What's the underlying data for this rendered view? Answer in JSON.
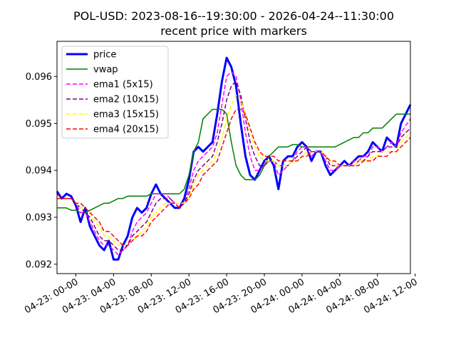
{
  "chart_data": {
    "type": "line",
    "title": "POL-USD: 2023-08-16--19:30:00 - 2026-04-24--11:30:00",
    "subtitle": "recent price with markers",
    "xlabel": "",
    "ylabel": "",
    "x_ticks": [
      "04-23: 00-00",
      "04-23: 04-00",
      "04-23: 08-00",
      "04-23: 12-00",
      "04-23: 16-00",
      "04-23: 20-00",
      "04-24: 00-00",
      "04-24: 04-00",
      "04-24: 08-00",
      "04-24: 12-00"
    ],
    "x_range_hours": [
      -2.0,
      35.5
    ],
    "y_ticks": [
      0.092,
      0.093,
      0.094,
      0.095,
      0.096
    ],
    "y_tick_labels": [
      "0.092",
      "0.093",
      "0.094",
      "0.095",
      "0.096"
    ],
    "ylim": [
      0.0918,
      0.09675
    ],
    "grid": false,
    "legend_position": "top-left",
    "x_hours": [
      -2.0,
      -1.5,
      -1.0,
      -0.5,
      0.0,
      0.5,
      1.0,
      1.5,
      2.0,
      2.5,
      3.0,
      3.5,
      4.0,
      4.5,
      5.0,
      5.5,
      6.0,
      6.5,
      7.0,
      7.5,
      8.0,
      8.5,
      9.0,
      9.5,
      10.0,
      10.5,
      11.0,
      11.5,
      12.0,
      12.5,
      13.0,
      13.5,
      14.0,
      14.5,
      15.0,
      15.5,
      16.0,
      16.5,
      17.0,
      17.5,
      18.0,
      18.5,
      19.0,
      19.5,
      20.0,
      20.5,
      21.0,
      21.5,
      22.0,
      22.5,
      23.0,
      23.5,
      24.0,
      24.5,
      25.0,
      25.5,
      26.0,
      26.5,
      27.0,
      27.5,
      28.0,
      28.5,
      29.0,
      29.5,
      30.0,
      30.5,
      31.0,
      31.5,
      32.0,
      32.5,
      33.0,
      33.5,
      34.0,
      34.5,
      35.5
    ],
    "series": [
      {
        "name": "price",
        "color": "#0000ff",
        "style": "solid",
        "values": [
          0.09355,
          0.0934,
          0.0935,
          0.09345,
          0.09325,
          0.0929,
          0.0932,
          0.0928,
          0.0926,
          0.0924,
          0.0923,
          0.0925,
          0.0921,
          0.0921,
          0.0924,
          0.0926,
          0.093,
          0.0932,
          0.0931,
          0.0932,
          0.0935,
          0.0937,
          0.0935,
          0.0934,
          0.0933,
          0.0932,
          0.0932,
          0.0934,
          0.0938,
          0.0944,
          0.0945,
          0.0944,
          0.0945,
          0.0946,
          0.0952,
          0.0959,
          0.0964,
          0.0962,
          0.0958,
          0.095,
          0.0943,
          0.0939,
          0.0938,
          0.094,
          0.0942,
          0.0943,
          0.0941,
          0.0936,
          0.0942,
          0.0943,
          0.0943,
          0.0945,
          0.0946,
          0.0945,
          0.0942,
          0.0944,
          0.0944,
          0.0941,
          0.0939,
          0.094,
          0.0941,
          0.0942,
          0.0941,
          0.0942,
          0.0943,
          0.0943,
          0.0944,
          0.0946,
          0.0945,
          0.0944,
          0.0947,
          0.0946,
          0.0945,
          0.095,
          0.0954
        ]
      },
      {
        "name": "vwap",
        "color": "#008000",
        "style": "solid",
        "values": [
          0.0932,
          0.0932,
          0.0932,
          0.09315,
          0.09315,
          0.0931,
          0.0931,
          0.09315,
          0.0932,
          0.09325,
          0.0933,
          0.0933,
          0.09335,
          0.0934,
          0.0934,
          0.09345,
          0.09345,
          0.09345,
          0.09345,
          0.09345,
          0.0935,
          0.0935,
          0.0935,
          0.0935,
          0.0935,
          0.0935,
          0.0935,
          0.0936,
          0.0939,
          0.0944,
          0.0946,
          0.0951,
          0.0952,
          0.0953,
          0.0953,
          0.0953,
          0.0952,
          0.0946,
          0.0941,
          0.0939,
          0.0938,
          0.0938,
          0.0938,
          0.0939,
          0.0941,
          0.0943,
          0.0944,
          0.0945,
          0.0945,
          0.0945,
          0.09455,
          0.09455,
          0.0945,
          0.0945,
          0.0945,
          0.0945,
          0.0945,
          0.0945,
          0.0945,
          0.0945,
          0.09455,
          0.0946,
          0.09465,
          0.0947,
          0.0947,
          0.0948,
          0.0948,
          0.0949,
          0.0949,
          0.0949,
          0.095,
          0.0951,
          0.0952,
          0.0952,
          0.0952
        ]
      },
      {
        "name": "ema1 (5x15)",
        "color": "#ff00ff",
        "style": "dashed",
        "values": [
          0.0935,
          0.0934,
          0.0934,
          0.0934,
          0.0933,
          0.0931,
          0.0931,
          0.0929,
          0.0927,
          0.0925,
          0.0924,
          0.0924,
          0.0923,
          0.0922,
          0.0923,
          0.0924,
          0.0927,
          0.0929,
          0.093,
          0.0931,
          0.0933,
          0.0935,
          0.0935,
          0.0935,
          0.0934,
          0.0933,
          0.0932,
          0.0933,
          0.0936,
          0.094,
          0.0942,
          0.0943,
          0.0944,
          0.0945,
          0.0948,
          0.0954,
          0.096,
          0.0961,
          0.096,
          0.0955,
          0.0948,
          0.0943,
          0.094,
          0.094,
          0.0941,
          0.0942,
          0.0942,
          0.0939,
          0.094,
          0.0941,
          0.0942,
          0.0944,
          0.0945,
          0.0945,
          0.0943,
          0.0944,
          0.0944,
          0.0942,
          0.094,
          0.094,
          0.0941,
          0.0941,
          0.0941,
          0.0942,
          0.0942,
          0.0943,
          0.0943,
          0.0945,
          0.0945,
          0.0944,
          0.0945,
          0.0946,
          0.0945,
          0.0948,
          0.0951
        ]
      },
      {
        "name": "ema2 (10x15)",
        "color": "#800080",
        "style": "dashed",
        "values": [
          0.0935,
          0.0934,
          0.0934,
          0.0934,
          0.0933,
          0.0932,
          0.0931,
          0.093,
          0.0928,
          0.0926,
          0.0925,
          0.0925,
          0.0924,
          0.0923,
          0.0923,
          0.0924,
          0.0926,
          0.0927,
          0.0928,
          0.0929,
          0.0931,
          0.0933,
          0.0934,
          0.0934,
          0.0934,
          0.0933,
          0.0933,
          0.0933,
          0.0935,
          0.0938,
          0.094,
          0.0941,
          0.0942,
          0.0943,
          0.0946,
          0.095,
          0.0955,
          0.0958,
          0.0959,
          0.0956,
          0.0951,
          0.0946,
          0.0943,
          0.0941,
          0.0941,
          0.0942,
          0.0942,
          0.0941,
          0.0941,
          0.0941,
          0.0942,
          0.0943,
          0.0944,
          0.0945,
          0.0944,
          0.0944,
          0.0944,
          0.0943,
          0.0941,
          0.0941,
          0.0941,
          0.0941,
          0.0941,
          0.0941,
          0.0942,
          0.0942,
          0.0943,
          0.0944,
          0.0944,
          0.0944,
          0.0945,
          0.0945,
          0.0945,
          0.0947,
          0.0949
        ]
      },
      {
        "name": "ema3 (15x15)",
        "color": "#ffff00",
        "style": "dashed",
        "values": [
          0.0934,
          0.0934,
          0.0934,
          0.0934,
          0.0933,
          0.0932,
          0.0932,
          0.0931,
          0.0929,
          0.0928,
          0.0926,
          0.0926,
          0.0925,
          0.0924,
          0.0924,
          0.0924,
          0.0925,
          0.0926,
          0.0927,
          0.0928,
          0.093,
          0.0931,
          0.0932,
          0.0933,
          0.0933,
          0.0933,
          0.0933,
          0.0933,
          0.0934,
          0.0937,
          0.0939,
          0.094,
          0.0941,
          0.0942,
          0.0944,
          0.0947,
          0.0951,
          0.0954,
          0.0956,
          0.0955,
          0.0952,
          0.0948,
          0.0945,
          0.0943,
          0.0942,
          0.0942,
          0.0942,
          0.0941,
          0.0941,
          0.0941,
          0.0942,
          0.0942,
          0.0943,
          0.0944,
          0.0944,
          0.0944,
          0.0944,
          0.0943,
          0.0942,
          0.0941,
          0.0941,
          0.0941,
          0.0941,
          0.0941,
          0.0942,
          0.0942,
          0.0942,
          0.0943,
          0.0943,
          0.0944,
          0.0944,
          0.0944,
          0.0944,
          0.0946,
          0.0948
        ]
      },
      {
        "name": "ema4 (20x15)",
        "color": "#ff0000",
        "style": "dashed",
        "values": [
          0.0934,
          0.0934,
          0.0934,
          0.0934,
          0.0933,
          0.0933,
          0.0932,
          0.0931,
          0.093,
          0.0929,
          0.0927,
          0.0927,
          0.0926,
          0.0925,
          0.0924,
          0.0924,
          0.0925,
          0.0926,
          0.0926,
          0.0927,
          0.0929,
          0.093,
          0.0931,
          0.0932,
          0.0933,
          0.0933,
          0.0932,
          0.0933,
          0.0934,
          0.0936,
          0.0937,
          0.0939,
          0.094,
          0.0941,
          0.0942,
          0.0945,
          0.0948,
          0.0951,
          0.0953,
          0.0953,
          0.0952,
          0.0949,
          0.0946,
          0.0944,
          0.0943,
          0.0943,
          0.0943,
          0.0942,
          0.0942,
          0.0942,
          0.0942,
          0.0942,
          0.0943,
          0.0943,
          0.0944,
          0.0944,
          0.0944,
          0.0943,
          0.0942,
          0.0942,
          0.0941,
          0.0941,
          0.0941,
          0.0941,
          0.0941,
          0.0942,
          0.0942,
          0.0942,
          0.0943,
          0.0943,
          0.0943,
          0.0944,
          0.0944,
          0.0945,
          0.0947
        ]
      }
    ]
  }
}
